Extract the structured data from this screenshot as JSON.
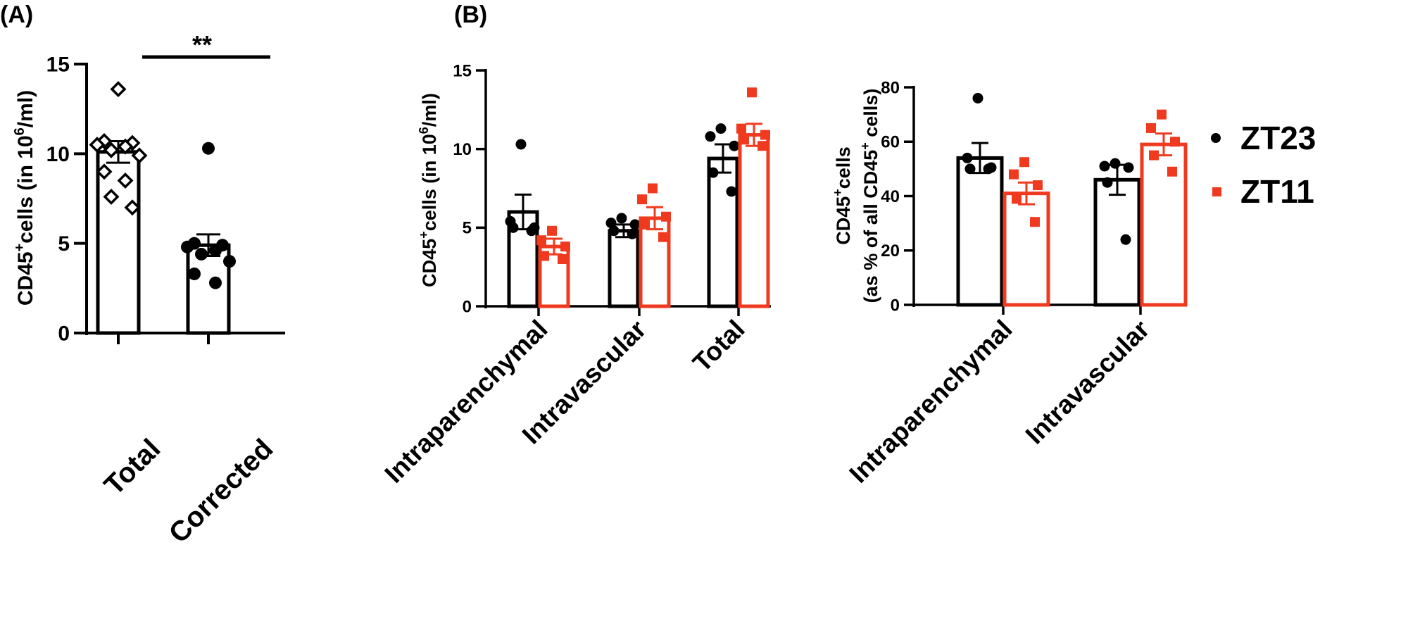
{
  "panel_labels": {
    "a": "(A)",
    "b": "(B)"
  },
  "legend": [
    {
      "label": "ZT23",
      "color": "#000000",
      "marker": "circle"
    },
    {
      "label": "ZT11",
      "color": "#f03a1f",
      "marker": "square"
    }
  ],
  "chart_data": [
    {
      "id": "A",
      "type": "bar",
      "title": "",
      "ylabel_parts": [
        "CD45",
        "+",
        "cells (in 10",
        "6",
        "/ml)"
      ],
      "ylim": [
        0,
        15
      ],
      "yticks": [
        0,
        5,
        10,
        15
      ],
      "categories": [
        "Total",
        "Corrected"
      ],
      "series": [
        {
          "name": "cells",
          "values": [
            10.1,
            4.9
          ],
          "sem": [
            0.6,
            0.6
          ],
          "markers": [
            "diamond",
            "circle"
          ],
          "points": [
            [
              13.6,
              10.7,
              10.6,
              10.5,
              10.4,
              10.2,
              9.9,
              9.0,
              8.5,
              7.6,
              7.0
            ],
            [
              10.3,
              5.0,
              4.9,
              4.8,
              4.6,
              4.4,
              4.0,
              3.3,
              2.8
            ]
          ]
        }
      ],
      "significance": {
        "label": "**",
        "between": [
          0,
          1
        ],
        "level": 15.5
      }
    },
    {
      "id": "B1",
      "type": "bar",
      "title": "",
      "ylabel_parts": [
        "CD45",
        "+",
        "cells (in 10",
        "6",
        "/ml)"
      ],
      "ylim": [
        0,
        15
      ],
      "yticks": [
        0,
        5,
        10,
        15
      ],
      "categories": [
        "Intraparenchymal",
        "Intravascular",
        "Total"
      ],
      "series": [
        {
          "name": "ZT23",
          "values": [
            6.0,
            4.8,
            9.4
          ],
          "sem": [
            1.1,
            0.4,
            0.9
          ],
          "points": [
            [
              10.3,
              5.4,
              5.0,
              5.0,
              4.8
            ],
            [
              5.6,
              5.3,
              5.2,
              4.8,
              4.6
            ],
            [
              11.3,
              10.8,
              10.2,
              8.5,
              7.3
            ]
          ]
        },
        {
          "name": "ZT11",
          "values": [
            3.8,
            5.6,
            10.9
          ],
          "sem": [
            0.5,
            0.7,
            0.7
          ],
          "points": [
            [
              4.8,
              4.2,
              3.8,
              3.2,
              3.0
            ],
            [
              7.5,
              6.8,
              5.7,
              5.2,
              4.4
            ],
            [
              13.6,
              11.3,
              10.9,
              10.6,
              10.2
            ]
          ]
        }
      ]
    },
    {
      "id": "B2",
      "type": "bar",
      "title": "",
      "ylabel_parts": [
        "CD45",
        "+",
        "cells"
      ],
      "ylabel2_parts": [
        "(as % of all CD45",
        "+",
        " cells)"
      ],
      "ylim": [
        0,
        80
      ],
      "yticks": [
        0,
        20,
        40,
        60,
        80
      ],
      "categories": [
        "Intraparenchymal",
        "Intravascular"
      ],
      "series": [
        {
          "name": "ZT23",
          "values": [
            54,
            46
          ],
          "sem": [
            5.5,
            5.5
          ],
          "points": [
            [
              76,
              54,
              50.5,
              50,
              50
            ],
            [
              52,
              51,
              50.5,
              45,
              24
            ]
          ]
        },
        {
          "name": "ZT11",
          "values": [
            41,
            59
          ],
          "sem": [
            4,
            4
          ],
          "points": [
            [
              52.5,
              48,
              44,
              39,
              30.5
            ],
            [
              70,
              65,
              60,
              55,
              49
            ]
          ]
        }
      ]
    }
  ]
}
